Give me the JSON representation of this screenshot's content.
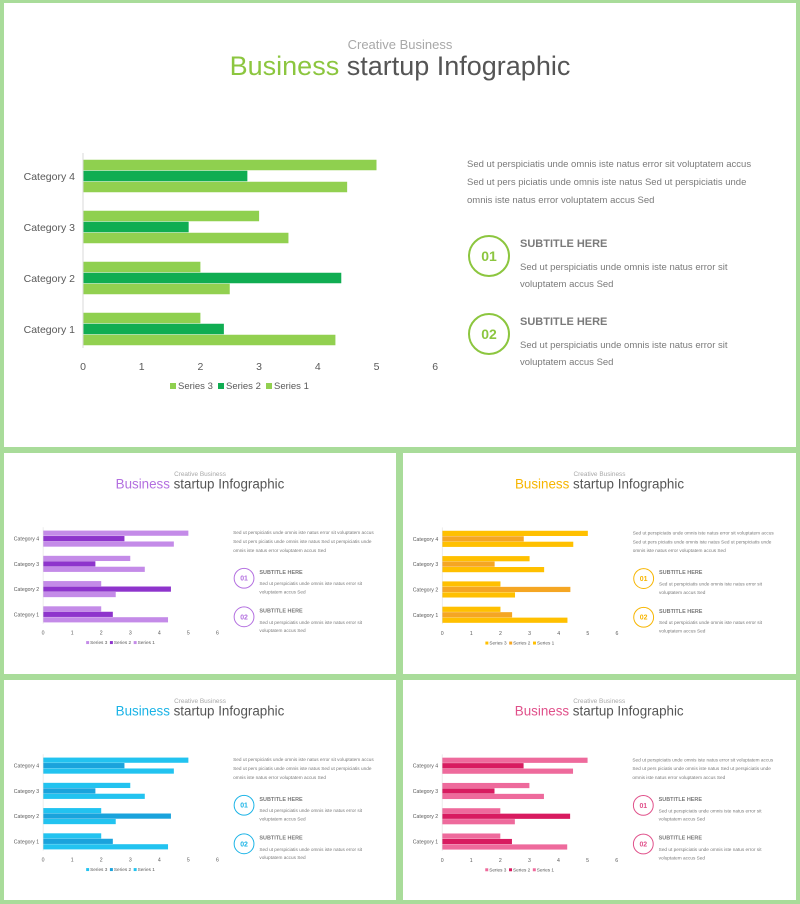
{
  "slides": [
    {
      "kicker": "Creative Business",
      "title_accent": "Business",
      "title_rest": " startup Infographic",
      "accent": "#8cc63f",
      "series_colors": [
        "#8fd04f",
        "#10ad52",
        "#92d050"
      ],
      "body": "Sed ut perspiciatis unde omnis iste natus error sit voluptatem  accus Sed ut pers piciatis unde omnis iste natus Sed ut perspiciatis unde omnis iste natus error  voluptatem  accus Sed",
      "items": [
        {
          "num": "01",
          "title": "SUBTITLE HERE",
          "text": "Sed ut perspiciatis unde omnis iste natus error sit voluptatem  accus Sed"
        },
        {
          "num": "02",
          "title": "SUBTITLE HERE",
          "text": "Sed ut perspiciatis unde omnis iste natus error sit voluptatem  accus Sed"
        }
      ],
      "legend": [
        "Series 3",
        "Series 2",
        "Series 1"
      ]
    },
    {
      "kicker": "Creative Business",
      "title_accent": "Business",
      "title_rest": " startup Infographic",
      "accent": "#b36fe0",
      "series_colors": [
        "#c48be8",
        "#8e34cc",
        "#c48be8"
      ],
      "body": "Sed ut perspiciatis unde omnis iste natus error sit voluptatem  accus Sed ut pers piciatis unde omnis iste natus Sed ut perspiciatis unde omnis iste natus error  voluptatem  accus Sed",
      "items": [
        {
          "num": "01",
          "title": "SUBTITLE HERE",
          "text": "Sed ut perspiciatis unde omnis iste natus error sit voluptatem  accus Sed"
        },
        {
          "num": "02",
          "title": "SUBTITLE HERE",
          "text": "Sed ut perspiciatis unde omnis iste natus error sit voluptatem  accus Sed"
        }
      ],
      "legend": [
        "Series 3",
        "Series 2",
        "Series 1"
      ]
    },
    {
      "kicker": "Creative Business",
      "title_accent": "Business",
      "title_rest": " startup Infographic",
      "accent": "#f7b500",
      "series_colors": [
        "#ffc000",
        "#f5a623",
        "#ffc000"
      ],
      "body": "Sed ut perspiciatis unde omnis iste natus error sit voluptatem  accus Sed ut pers piciatis unde omnis iste natus Sed ut perspiciatis unde omnis iste natus error  voluptatem  accus Sed",
      "items": [
        {
          "num": "01",
          "title": "SUBTITLE HERE",
          "text": "Sed ut perspiciatis unde omnis iste natus error sit voluptatem  accus Sed"
        },
        {
          "num": "02",
          "title": "SUBTITLE HERE",
          "text": "Sed ut perspiciatis unde omnis iste natus error sit voluptatem  accus Sed"
        }
      ],
      "legend": [
        "Series 3",
        "Series 2",
        "Series 1"
      ]
    },
    {
      "kicker": "Creative Business",
      "title_accent": "Business",
      "title_rest": " startup Infographic",
      "accent": "#1ab3e6",
      "series_colors": [
        "#22c3f0",
        "#1aa3dc",
        "#22c3f0"
      ],
      "body": "Sed ut perspiciatis unde omnis iste natus error sit voluptatem  accus Sed ut pers piciatis unde omnis iste natus Sed ut perspiciatis unde omnis iste natus error  voluptatem  accus Sed",
      "items": [
        {
          "num": "01",
          "title": "SUBTITLE HERE",
          "text": "Sed ut perspiciatis unde omnis iste natus error sit voluptatem  accus Sed"
        },
        {
          "num": "02",
          "title": "SUBTITLE HERE",
          "text": "Sed ut perspiciatis unde omnis iste natus error sit voluptatem  accus Sed"
        }
      ],
      "legend": [
        "Series 3",
        "Series 2",
        "Series 1"
      ]
    },
    {
      "kicker": "Creative Business",
      "title_accent": "Business",
      "title_rest": " startup Infographic",
      "accent": "#e0508a",
      "series_colors": [
        "#ee6a9c",
        "#d81b60",
        "#ee6a9c"
      ],
      "body": "Sed ut perspiciatis unde omnis iste natus error sit voluptatem  accus Sed ut pers piciatis unde omnis iste natus Sed ut perspiciatis unde omnis iste natus error  voluptatem  accus Sed",
      "items": [
        {
          "num": "01",
          "title": "SUBTITLE HERE",
          "text": "Sed ut perspiciatis unde omnis iste natus error sit voluptatem  accus Sed"
        },
        {
          "num": "02",
          "title": "SUBTITLE HERE",
          "text": "Sed ut perspiciatis unde omnis iste natus error sit voluptatem  accus Sed"
        }
      ],
      "legend": [
        "Series 3",
        "Series 2",
        "Series 1"
      ]
    }
  ],
  "chart_data": {
    "type": "bar",
    "orientation": "horizontal",
    "categories": [
      "Category 1",
      "Category 2",
      "Category 3",
      "Category 4"
    ],
    "series": [
      {
        "name": "Series 3",
        "values": [
          2,
          2,
          3,
          5
        ]
      },
      {
        "name": "Series 2",
        "values": [
          2.4,
          4.4,
          1.8,
          2.8
        ]
      },
      {
        "name": "Series 1",
        "values": [
          4.3,
          2.5,
          3.5,
          4.5
        ]
      }
    ],
    "xlim": [
      0,
      6
    ],
    "x_ticks": [
      "0",
      "1",
      "2",
      "3",
      "4",
      "5",
      "6"
    ],
    "grid": false,
    "legend_position": "bottom"
  }
}
